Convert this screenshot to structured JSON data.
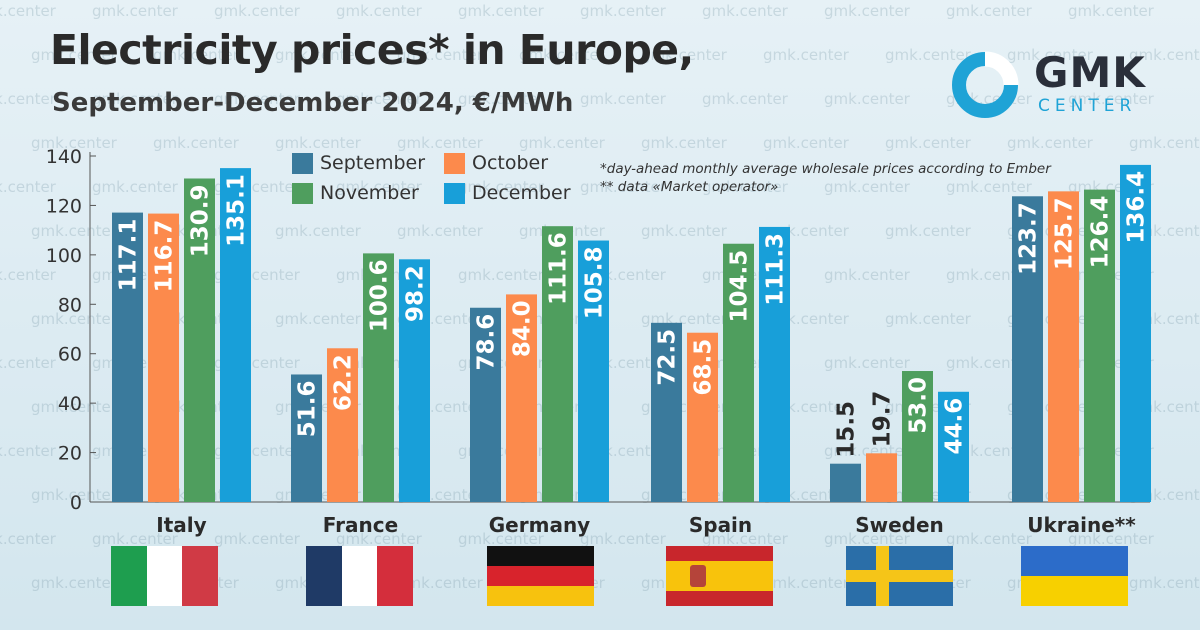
{
  "watermark": "gmk.center",
  "header": {
    "title": "Electricity prices* in Europe,",
    "subtitle": "September-December 2024, €/MWh"
  },
  "logo": {
    "name": "GMK",
    "sub": "CENTER"
  },
  "notes": {
    "line1": "*day-ahead monthly average wholesale prices according to Ember",
    "line2": "** data «Market operator»"
  },
  "colors": {
    "September": "#3a7a9c",
    "October": "#fc8a4c",
    "November": "#4f9e5e",
    "December": "#189fd9"
  },
  "chart_data": {
    "type": "bar",
    "title": "Electricity prices* in Europe, September-December 2024, €/MWh",
    "categories": [
      "Italy",
      "France",
      "Germany",
      "Spain",
      "Sweden",
      "Ukraine**"
    ],
    "series": [
      {
        "name": "September",
        "values": [
          117.1,
          51.6,
          78.6,
          72.5,
          15.5,
          123.7
        ]
      },
      {
        "name": "October",
        "values": [
          116.7,
          62.2,
          84.0,
          68.5,
          19.7,
          125.7
        ]
      },
      {
        "name": "November",
        "values": [
          130.9,
          100.6,
          111.6,
          104.5,
          53.0,
          126.4
        ]
      },
      {
        "name": "December",
        "values": [
          135.1,
          98.2,
          105.8,
          111.3,
          44.6,
          136.4
        ]
      }
    ],
    "value_labels": [
      [
        "117.1",
        "51.6",
        "78.6",
        "72.5",
        "15.5",
        "123.7"
      ],
      [
        "116.7",
        "62.2",
        "84.0",
        "68.5",
        "19.7",
        "125.7"
      ],
      [
        "130.9",
        "100.6",
        "111.6",
        "104.5",
        "53.0",
        "126.4"
      ],
      [
        "135.1",
        "98.2",
        "105.8",
        "111.3",
        "44.6",
        "136.4"
      ]
    ],
    "ylim": [
      0,
      140
    ],
    "yticks": [
      0,
      20,
      40,
      60,
      80,
      100,
      120,
      140
    ],
    "grid": false,
    "legend": "top-center"
  }
}
